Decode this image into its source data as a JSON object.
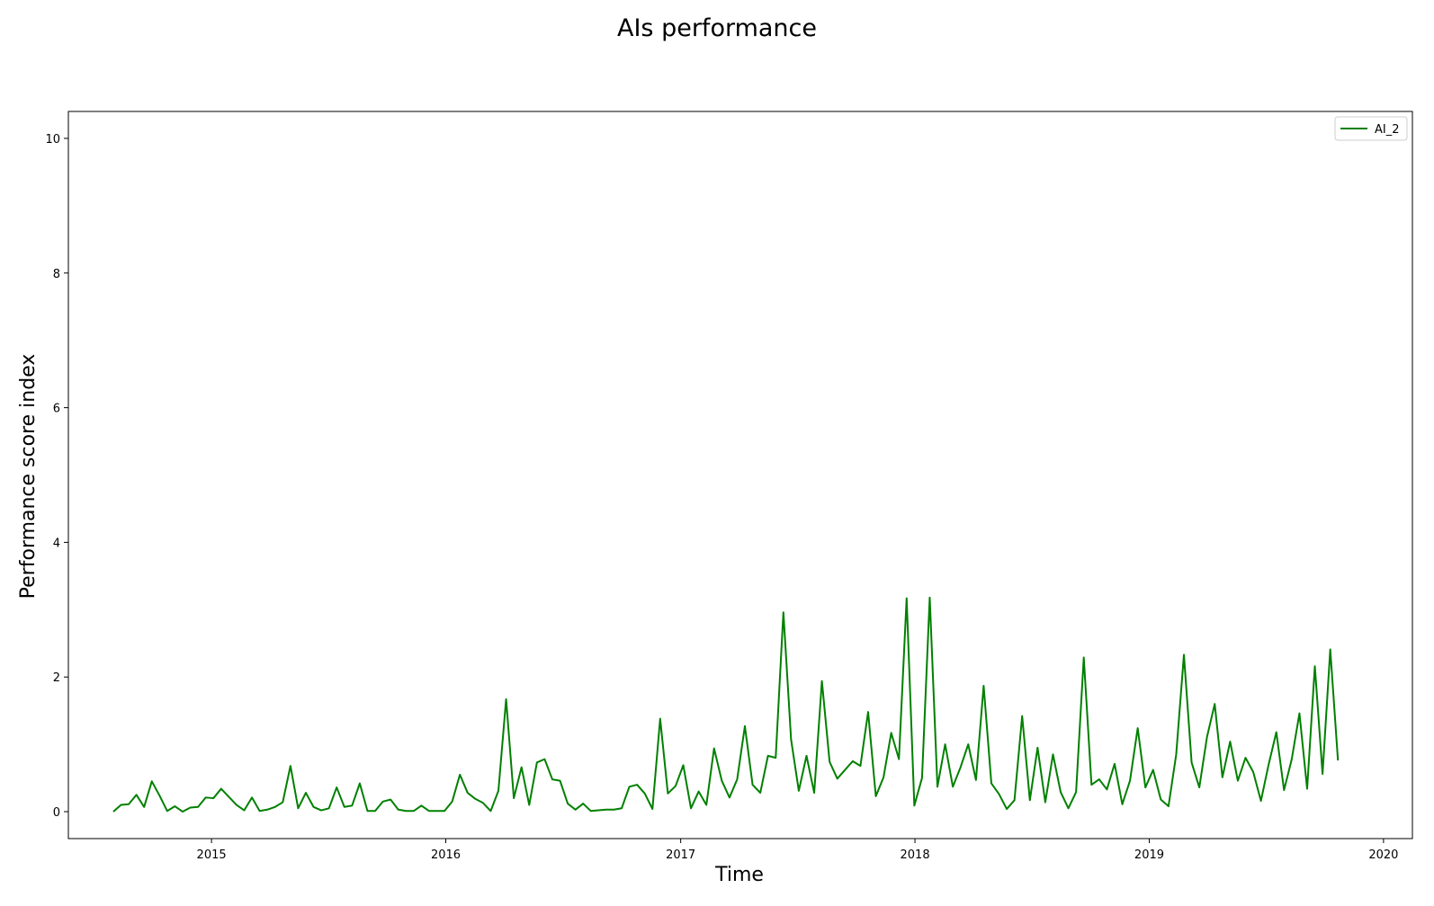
{
  "chart_data": {
    "type": "line",
    "title": "AIs performance",
    "xlabel": "Time",
    "ylabel": "Performance score index",
    "x_axis_type": "date",
    "xlim": [
      "2014-05-23",
      "2020-02-15"
    ],
    "ylim": [
      -0.4,
      10.4
    ],
    "yticks": [
      0,
      2,
      4,
      6,
      8,
      10
    ],
    "xticks": [
      {
        "date": "2015-01-01",
        "label": "2015"
      },
      {
        "date": "2016-01-01",
        "label": "2016"
      },
      {
        "date": "2017-01-01",
        "label": "2017"
      },
      {
        "date": "2018-01-01",
        "label": "2018"
      },
      {
        "date": "2019-01-01",
        "label": "2019"
      },
      {
        "date": "2020-01-01",
        "label": "2020"
      }
    ],
    "grid": false,
    "legend": {
      "position": "top-right"
    },
    "series": [
      {
        "name": "AI_2",
        "color": "#008000",
        "points": [
          [
            "2014-08-01",
            0.0
          ],
          [
            "2014-08-13",
            0.1
          ],
          [
            "2014-08-25",
            0.11
          ],
          [
            "2014-09-06",
            0.25
          ],
          [
            "2014-09-18",
            0.07
          ],
          [
            "2014-09-30",
            0.45
          ],
          [
            "2014-10-12",
            0.24
          ],
          [
            "2014-10-24",
            0.01
          ],
          [
            "2014-11-05",
            0.08
          ],
          [
            "2014-11-17",
            0.0
          ],
          [
            "2014-11-29",
            0.06
          ],
          [
            "2014-12-11",
            0.07
          ],
          [
            "2014-12-23",
            0.21
          ],
          [
            "2015-01-04",
            0.2
          ],
          [
            "2015-01-16",
            0.34
          ],
          [
            "2015-01-28",
            0.22
          ],
          [
            "2015-02-09",
            0.1
          ],
          [
            "2015-02-21",
            0.02
          ],
          [
            "2015-03-05",
            0.21
          ],
          [
            "2015-03-17",
            0.01
          ],
          [
            "2015-03-29",
            0.03
          ],
          [
            "2015-04-10",
            0.07
          ],
          [
            "2015-04-22",
            0.14
          ],
          [
            "2015-05-04",
            0.68
          ],
          [
            "2015-05-16",
            0.05
          ],
          [
            "2015-05-28",
            0.28
          ],
          [
            "2015-06-09",
            0.07
          ],
          [
            "2015-06-21",
            0.02
          ],
          [
            "2015-07-03",
            0.05
          ],
          [
            "2015-07-15",
            0.36
          ],
          [
            "2015-07-27",
            0.07
          ],
          [
            "2015-08-08",
            0.09
          ],
          [
            "2015-08-20",
            0.42
          ],
          [
            "2015-09-01",
            0.01
          ],
          [
            "2015-09-13",
            0.01
          ],
          [
            "2015-09-25",
            0.15
          ],
          [
            "2015-10-07",
            0.18
          ],
          [
            "2015-10-19",
            0.03
          ],
          [
            "2015-10-31",
            0.01
          ],
          [
            "2015-11-12",
            0.01
          ],
          [
            "2015-11-24",
            0.09
          ],
          [
            "2015-12-06",
            0.01
          ],
          [
            "2015-12-18",
            0.01
          ],
          [
            "2015-12-30",
            0.01
          ],
          [
            "2016-01-11",
            0.15
          ],
          [
            "2016-01-23",
            0.55
          ],
          [
            "2016-02-04",
            0.28
          ],
          [
            "2016-02-16",
            0.19
          ],
          [
            "2016-02-28",
            0.13
          ],
          [
            "2016-03-11",
            0.01
          ],
          [
            "2016-03-23",
            0.31
          ],
          [
            "2016-04-04",
            1.67
          ],
          [
            "2016-04-16",
            0.2
          ],
          [
            "2016-04-28",
            0.66
          ],
          [
            "2016-05-10",
            0.1
          ],
          [
            "2016-05-22",
            0.73
          ],
          [
            "2016-06-03",
            0.78
          ],
          [
            "2016-06-15",
            0.48
          ],
          [
            "2016-06-27",
            0.46
          ],
          [
            "2016-07-09",
            0.12
          ],
          [
            "2016-07-21",
            0.03
          ],
          [
            "2016-08-02",
            0.12
          ],
          [
            "2016-08-14",
            0.01
          ],
          [
            "2016-08-26",
            0.02
          ],
          [
            "2016-09-07",
            0.03
          ],
          [
            "2016-09-19",
            0.03
          ],
          [
            "2016-10-01",
            0.05
          ],
          [
            "2016-10-13",
            0.37
          ],
          [
            "2016-10-25",
            0.4
          ],
          [
            "2016-11-06",
            0.27
          ],
          [
            "2016-11-18",
            0.04
          ],
          [
            "2016-11-30",
            1.38
          ],
          [
            "2016-12-12",
            0.27
          ],
          [
            "2016-12-24",
            0.38
          ],
          [
            "2017-01-05",
            0.69
          ],
          [
            "2017-01-17",
            0.05
          ],
          [
            "2017-01-29",
            0.3
          ],
          [
            "2017-02-10",
            0.1
          ],
          [
            "2017-02-22",
            0.94
          ],
          [
            "2017-03-06",
            0.46
          ],
          [
            "2017-03-18",
            0.21
          ],
          [
            "2017-03-30",
            0.48
          ],
          [
            "2017-04-11",
            1.27
          ],
          [
            "2017-04-23",
            0.4
          ],
          [
            "2017-05-05",
            0.28
          ],
          [
            "2017-05-17",
            0.83
          ],
          [
            "2017-05-29",
            0.8
          ],
          [
            "2017-06-10",
            2.96
          ],
          [
            "2017-06-22",
            1.07
          ],
          [
            "2017-07-04",
            0.31
          ],
          [
            "2017-07-16",
            0.83
          ],
          [
            "2017-07-28",
            0.28
          ],
          [
            "2017-08-09",
            1.94
          ],
          [
            "2017-08-21",
            0.74
          ],
          [
            "2017-09-02",
            0.49
          ],
          [
            "2017-09-14",
            0.62
          ],
          [
            "2017-09-26",
            0.75
          ],
          [
            "2017-10-08",
            0.68
          ],
          [
            "2017-10-20",
            1.48
          ],
          [
            "2017-11-01",
            0.23
          ],
          [
            "2017-11-13",
            0.51
          ],
          [
            "2017-11-25",
            1.17
          ],
          [
            "2017-12-07",
            0.78
          ],
          [
            "2017-12-19",
            3.17
          ],
          [
            "2017-12-31",
            0.09
          ],
          [
            "2018-01-12",
            0.5
          ],
          [
            "2018-01-24",
            3.18
          ],
          [
            "2018-02-05",
            0.37
          ],
          [
            "2018-02-17",
            1.0
          ],
          [
            "2018-03-01",
            0.37
          ],
          [
            "2018-03-13",
            0.66
          ],
          [
            "2018-03-25",
            1.0
          ],
          [
            "2018-04-06",
            0.47
          ],
          [
            "2018-04-18",
            1.87
          ],
          [
            "2018-04-30",
            0.42
          ],
          [
            "2018-05-12",
            0.26
          ],
          [
            "2018-05-24",
            0.04
          ],
          [
            "2018-06-05",
            0.17
          ],
          [
            "2018-06-17",
            1.42
          ],
          [
            "2018-06-29",
            0.17
          ],
          [
            "2018-07-11",
            0.95
          ],
          [
            "2018-07-23",
            0.14
          ],
          [
            "2018-08-04",
            0.85
          ],
          [
            "2018-08-16",
            0.29
          ],
          [
            "2018-08-28",
            0.05
          ],
          [
            "2018-09-09",
            0.29
          ],
          [
            "2018-09-21",
            2.29
          ],
          [
            "2018-10-03",
            0.4
          ],
          [
            "2018-10-15",
            0.48
          ],
          [
            "2018-10-27",
            0.33
          ],
          [
            "2018-11-08",
            0.71
          ],
          [
            "2018-11-20",
            0.11
          ],
          [
            "2018-12-02",
            0.46
          ],
          [
            "2018-12-14",
            1.24
          ],
          [
            "2018-12-26",
            0.36
          ],
          [
            "2019-01-07",
            0.62
          ],
          [
            "2019-01-19",
            0.18
          ],
          [
            "2019-01-31",
            0.08
          ],
          [
            "2019-02-12",
            0.85
          ],
          [
            "2019-02-24",
            2.33
          ],
          [
            "2019-03-08",
            0.73
          ],
          [
            "2019-03-20",
            0.36
          ],
          [
            "2019-04-01",
            1.11
          ],
          [
            "2019-04-13",
            1.6
          ],
          [
            "2019-04-25",
            0.51
          ],
          [
            "2019-05-07",
            1.04
          ],
          [
            "2019-05-19",
            0.46
          ],
          [
            "2019-05-31",
            0.8
          ],
          [
            "2019-06-12",
            0.59
          ],
          [
            "2019-06-24",
            0.16
          ],
          [
            "2019-07-06",
            0.7
          ],
          [
            "2019-07-18",
            1.18
          ],
          [
            "2019-07-30",
            0.32
          ],
          [
            "2019-08-11",
            0.78
          ],
          [
            "2019-08-23",
            1.46
          ],
          [
            "2019-09-04",
            0.34
          ],
          [
            "2019-09-16",
            2.16
          ],
          [
            "2019-09-28",
            0.56
          ],
          [
            "2019-10-10",
            2.41
          ],
          [
            "2019-10-22",
            0.76
          ]
        ]
      }
    ]
  }
}
